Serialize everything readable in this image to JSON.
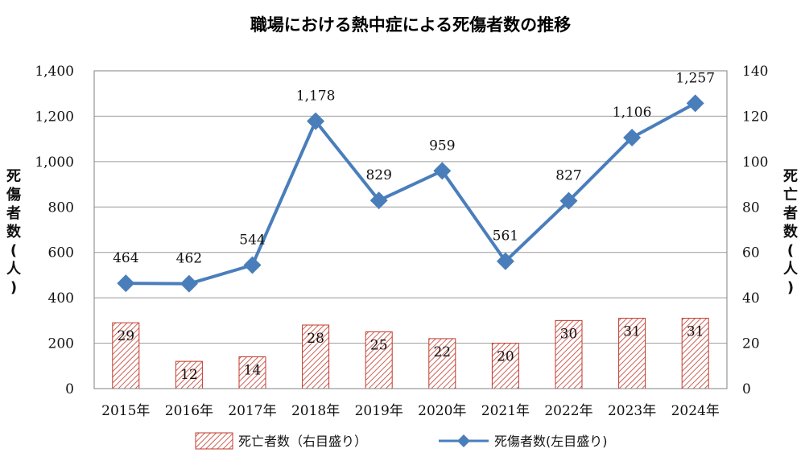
{
  "chart_data": {
    "type": "bar-line-combo",
    "title": "職場における熱中症による死傷者数の推移",
    "categories": [
      "2015年",
      "2016年",
      "2017年",
      "2018年",
      "2019年",
      "2020年",
      "2021年",
      "2022年",
      "2023年",
      "2024年"
    ],
    "left_axis": {
      "label": "死傷者数(人)",
      "range": [
        0,
        1400
      ],
      "ticks": [
        0,
        200,
        400,
        600,
        800,
        1000,
        1200,
        1400
      ],
      "tick_labels": [
        "0",
        "200",
        "400",
        "600",
        "800",
        "1,000",
        "1,200",
        "1,400"
      ]
    },
    "right_axis": {
      "label": "死亡者数(人)",
      "range": [
        0,
        140
      ],
      "ticks": [
        0,
        20,
        40,
        60,
        80,
        100,
        120,
        140
      ],
      "tick_labels": [
        "0",
        "20",
        "40",
        "60",
        "80",
        "100",
        "120",
        "140"
      ]
    },
    "series": [
      {
        "name": "死亡者数（右目盛り）",
        "type": "bar",
        "axis": "right",
        "values": [
          29,
          12,
          14,
          28,
          25,
          22,
          20,
          30,
          31,
          31
        ],
        "labels": [
          "29",
          "12",
          "14",
          "28",
          "25",
          "22",
          "20",
          "30",
          "31",
          "31"
        ],
        "color": "#c0392b"
      },
      {
        "name": "死傷者数(左目盛り)",
        "type": "line",
        "axis": "left",
        "values": [
          464,
          462,
          544,
          1178,
          829,
          959,
          561,
          827,
          1106,
          1257
        ],
        "labels": [
          "464",
          "462",
          "544",
          "1,178",
          "829",
          "959",
          "561",
          "827",
          "1,106",
          "1,257"
        ],
        "color": "#4a7ebb"
      }
    ],
    "grid": "horizontal",
    "legend": "bottom"
  }
}
